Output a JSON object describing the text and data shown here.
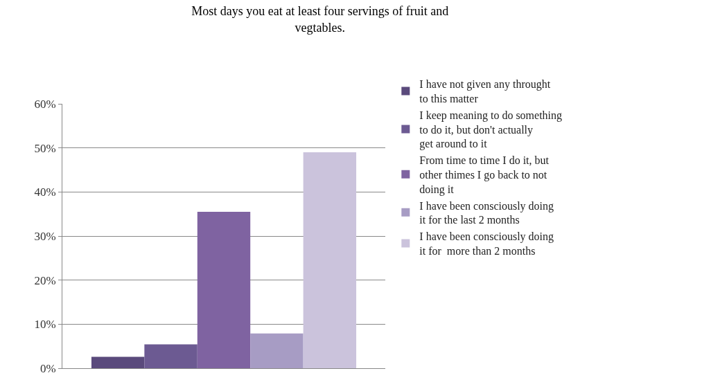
{
  "chart_data": {
    "type": "bar",
    "title": "Most days you eat at least four servings of fruit and vegtables.",
    "categories": [
      null
    ],
    "series": [
      {
        "name": "I have not given any throught to this matter",
        "color": "#5a4a7c",
        "values": [
          0.026
        ]
      },
      {
        "name": "I keep meaning to do something to do it, but don't actually get around to it",
        "color": "#6c5a92",
        "values": [
          0.054
        ]
      },
      {
        "name": "From time to time I do it, but other thimes I go back to not doing it",
        "color": "#7f63a1",
        "values": [
          0.355
        ]
      },
      {
        "name": "I have been consciously doing it for the last 2 months",
        "color": "#a79cc4",
        "values": [
          0.079
        ]
      },
      {
        "name": "I have been consciously doing it for  more than 2 months",
        "color": "#cbc3dc",
        "values": [
          0.49
        ]
      }
    ],
    "ylim": [
      0,
      0.6
    ],
    "yticks": [
      {
        "value": 0,
        "label": "0%"
      },
      {
        "value": 0.1,
        "label": "10%"
      },
      {
        "value": 0.2,
        "label": "20%"
      },
      {
        "value": 0.3,
        "label": "30%"
      },
      {
        "value": 0.4,
        "label": "40%"
      },
      {
        "value": 0.5,
        "label": "50%"
      },
      {
        "value": 0.6,
        "label": "60%"
      }
    ],
    "grid": "y",
    "legend": "right"
  }
}
